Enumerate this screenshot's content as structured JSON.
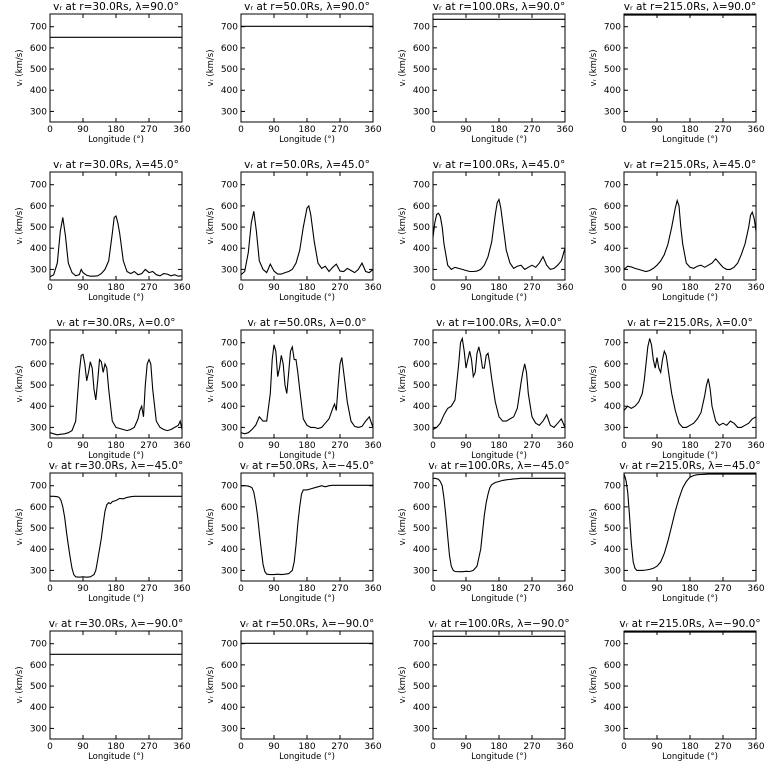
{
  "chart_data": {
    "type": "line",
    "layout": "grid",
    "x_ticks": [
      "0",
      "90",
      "180",
      "270",
      "360"
    ],
    "y_ticks": [
      "300",
      "400",
      "500",
      "600",
      "700"
    ],
    "xlim": [
      0,
      360
    ],
    "ylim": [
      250,
      760
    ],
    "xlabel": "Longitude (°)",
    "ylabel": "vᵣ (km/s)",
    "panels": [
      {
        "title": "vᵣ at r=30.0Rs,  λ=90.0°",
        "x": [
          0,
          360
        ],
        "y": [
          650,
          650
        ]
      },
      {
        "title": "vᵣ at r=50.0Rs,  λ=90.0°",
        "x": [
          0,
          360
        ],
        "y": [
          702,
          702
        ]
      },
      {
        "title": "vᵣ at r=100.0Rs,  λ=90.0°",
        "x": [
          0,
          360
        ],
        "y": [
          735,
          735
        ]
      },
      {
        "title": "vᵣ at r=215.0Rs,  λ=90.0°",
        "x": [
          0,
          360
        ],
        "y": [
          755,
          755
        ]
      },
      {
        "title": "vᵣ at r=30.0Rs,  λ=45.0°",
        "x": [
          0,
          10,
          20,
          28,
          35,
          42,
          50,
          60,
          70,
          80,
          85,
          90,
          100,
          110,
          120,
          130,
          140,
          150,
          160,
          170,
          175,
          180,
          185,
          190,
          200,
          210,
          220,
          230,
          240,
          250,
          260,
          270,
          280,
          290,
          300,
          310,
          320,
          330,
          340,
          350,
          360
        ],
        "y": [
          265,
          275,
          330,
          480,
          545,
          460,
          330,
          285,
          270,
          275,
          300,
          285,
          272,
          268,
          268,
          270,
          280,
          300,
          340,
          470,
          545,
          552,
          520,
          470,
          340,
          290,
          280,
          290,
          275,
          280,
          300,
          285,
          290,
          275,
          270,
          280,
          278,
          270,
          275,
          268,
          270
        ]
      },
      {
        "title": "vᵣ at r=50.0Rs,  λ=45.0°",
        "x": [
          0,
          10,
          20,
          28,
          35,
          42,
          50,
          60,
          70,
          80,
          90,
          100,
          110,
          120,
          130,
          140,
          150,
          160,
          170,
          180,
          185,
          190,
          200,
          210,
          220,
          230,
          240,
          250,
          260,
          270,
          280,
          290,
          300,
          310,
          320,
          330,
          340,
          350,
          360
        ],
        "y": [
          275,
          290,
          380,
          520,
          575,
          480,
          340,
          300,
          285,
          325,
          292,
          278,
          278,
          285,
          290,
          300,
          330,
          390,
          500,
          590,
          600,
          560,
          430,
          330,
          305,
          315,
          290,
          310,
          325,
          292,
          290,
          305,
          295,
          285,
          300,
          330,
          290,
          285,
          300
        ]
      },
      {
        "title": "vᵣ at r=100.0Rs,  λ=45.0°",
        "x": [
          0,
          5,
          10,
          15,
          20,
          25,
          30,
          40,
          50,
          60,
          70,
          80,
          90,
          100,
          110,
          120,
          130,
          140,
          150,
          160,
          170,
          175,
          180,
          185,
          190,
          200,
          210,
          220,
          230,
          240,
          250,
          260,
          270,
          280,
          290,
          300,
          310,
          320,
          330,
          340,
          350,
          360
        ],
        "y": [
          450,
          520,
          560,
          565,
          550,
          500,
          420,
          320,
          300,
          310,
          305,
          300,
          295,
          290,
          290,
          292,
          300,
          320,
          360,
          430,
          560,
          615,
          630,
          590,
          520,
          390,
          330,
          305,
          315,
          320,
          300,
          310,
          320,
          310,
          330,
          360,
          320,
          300,
          305,
          320,
          340,
          400
        ]
      },
      {
        "title": "vᵣ at r=215.0Rs,  λ=45.0°",
        "x": [
          0,
          10,
          20,
          30,
          40,
          50,
          60,
          70,
          80,
          90,
          100,
          110,
          120,
          130,
          140,
          145,
          150,
          155,
          160,
          170,
          180,
          190,
          200,
          210,
          220,
          230,
          240,
          250,
          260,
          270,
          280,
          290,
          300,
          310,
          320,
          330,
          340,
          345,
          350,
          355,
          360
        ],
        "y": [
          300,
          315,
          312,
          305,
          300,
          295,
          290,
          295,
          305,
          320,
          340,
          370,
          420,
          500,
          590,
          625,
          600,
          500,
          420,
          330,
          310,
          305,
          315,
          320,
          310,
          320,
          330,
          350,
          330,
          310,
          300,
          300,
          310,
          330,
          370,
          420,
          500,
          555,
          570,
          540,
          480
        ]
      },
      {
        "title": "vᵣ at r=30.0Rs,  λ=0.0°",
        "x": [
          0,
          10,
          20,
          30,
          40,
          50,
          60,
          70,
          80,
          85,
          90,
          95,
          100,
          105,
          110,
          115,
          120,
          125,
          130,
          135,
          140,
          145,
          150,
          155,
          160,
          170,
          180,
          190,
          200,
          210,
          220,
          230,
          240,
          245,
          250,
          255,
          260,
          265,
          270,
          275,
          280,
          290,
          300,
          310,
          320,
          330,
          340,
          350,
          355,
          360
        ],
        "y": [
          275,
          270,
          265,
          268,
          270,
          275,
          285,
          330,
          560,
          640,
          645,
          600,
          520,
          560,
          610,
          580,
          480,
          430,
          520,
          620,
          610,
          560,
          600,
          580,
          480,
          330,
          300,
          295,
          290,
          285,
          290,
          300,
          340,
          380,
          400,
          350,
          500,
          600,
          620,
          600,
          480,
          330,
          300,
          290,
          285,
          290,
          300,
          310,
          330,
          290
        ]
      },
      {
        "title": "vᵣ at r=50.0Rs,  λ=0.0°",
        "x": [
          0,
          10,
          20,
          30,
          40,
          50,
          60,
          70,
          80,
          85,
          90,
          95,
          100,
          105,
          110,
          115,
          120,
          125,
          130,
          135,
          140,
          145,
          150,
          155,
          160,
          170,
          180,
          190,
          200,
          210,
          220,
          230,
          240,
          250,
          255,
          260,
          265,
          270,
          275,
          280,
          290,
          300,
          310,
          320,
          330,
          340,
          350,
          360
        ],
        "y": [
          275,
          270,
          275,
          290,
          310,
          350,
          330,
          330,
          460,
          620,
          690,
          660,
          540,
          580,
          640,
          600,
          500,
          460,
          560,
          660,
          680,
          620,
          620,
          560,
          480,
          340,
          310,
          300,
          300,
          295,
          300,
          320,
          340,
          390,
          410,
          380,
          500,
          600,
          630,
          560,
          420,
          330,
          305,
          300,
          305,
          330,
          350,
          300
        ]
      },
      {
        "title": "vᵣ at r=100.0Rs,  λ=0.0°",
        "x": [
          0,
          10,
          20,
          30,
          40,
          50,
          60,
          70,
          75,
          80,
          85,
          90,
          95,
          100,
          105,
          110,
          115,
          120,
          125,
          130,
          135,
          140,
          145,
          150,
          155,
          160,
          170,
          180,
          190,
          200,
          210,
          220,
          230,
          235,
          240,
          245,
          250,
          255,
          260,
          270,
          280,
          290,
          300,
          310,
          320,
          330,
          340,
          350,
          360
        ],
        "y": [
          290,
          300,
          320,
          360,
          390,
          400,
          430,
          600,
          700,
          720,
          660,
          580,
          620,
          660,
          620,
          540,
          560,
          650,
          680,
          640,
          580,
          580,
          640,
          650,
          600,
          530,
          420,
          350,
          330,
          330,
          340,
          350,
          390,
          450,
          510,
          560,
          600,
          560,
          460,
          350,
          320,
          310,
          330,
          360,
          310,
          300,
          320,
          340,
          300
        ]
      },
      {
        "title": "vᵣ at r=215.0Rs,  λ=0.0°",
        "x": [
          0,
          10,
          20,
          30,
          40,
          50,
          55,
          60,
          65,
          70,
          75,
          80,
          85,
          90,
          95,
          100,
          105,
          110,
          115,
          120,
          125,
          130,
          140,
          150,
          160,
          170,
          180,
          190,
          200,
          210,
          220,
          225,
          230,
          235,
          240,
          250,
          260,
          270,
          280,
          290,
          300,
          310,
          320,
          330,
          340,
          350,
          360
        ],
        "y": [
          380,
          400,
          390,
          400,
          420,
          460,
          520,
          600,
          680,
          720,
          690,
          620,
          580,
          630,
          580,
          560,
          620,
          660,
          640,
          580,
          520,
          460,
          380,
          320,
          300,
          300,
          310,
          320,
          340,
          370,
          450,
          500,
          530,
          480,
          400,
          330,
          310,
          320,
          310,
          330,
          320,
          300,
          300,
          310,
          320,
          340,
          350
        ]
      },
      {
        "title": "vᵣ at r=30.0Rs,  λ=−45.0°",
        "x": [
          0,
          10,
          20,
          25,
          30,
          35,
          40,
          45,
          50,
          55,
          60,
          65,
          70,
          80,
          90,
          100,
          110,
          115,
          120,
          125,
          130,
          140,
          145,
          150,
          155,
          160,
          165,
          170,
          180,
          190,
          200,
          210,
          220,
          230,
          240,
          250,
          260,
          270,
          280,
          290,
          300,
          310,
          320,
          330,
          340,
          350,
          360
        ],
        "y": [
          650,
          650,
          648,
          645,
          630,
          600,
          550,
          480,
          420,
          360,
          310,
          280,
          270,
          268,
          270,
          268,
          270,
          275,
          280,
          300,
          350,
          450,
          520,
          580,
          610,
          620,
          615,
          625,
          630,
          640,
          638,
          645,
          648,
          650,
          650,
          650,
          650,
          650,
          650,
          650,
          650,
          650,
          650,
          650,
          650,
          650,
          650
        ]
      },
      {
        "title": "vᵣ at r=50.0Rs,  λ=−45.0°",
        "x": [
          0,
          10,
          20,
          25,
          30,
          35,
          40,
          45,
          50,
          55,
          60,
          65,
          70,
          80,
          90,
          100,
          110,
          120,
          130,
          140,
          145,
          150,
          155,
          160,
          165,
          170,
          180,
          190,
          200,
          210,
          220,
          230,
          240,
          250,
          260,
          270,
          280,
          290,
          300,
          310,
          320,
          330,
          340,
          350,
          360
        ],
        "y": [
          700,
          700,
          698,
          695,
          690,
          670,
          620,
          560,
          480,
          400,
          330,
          295,
          282,
          280,
          280,
          282,
          280,
          282,
          285,
          300,
          340,
          420,
          520,
          600,
          660,
          680,
          680,
          685,
          690,
          695,
          700,
          695,
          700,
          702,
          702,
          702,
          702,
          702,
          702,
          702,
          702,
          702,
          702,
          702,
          702
        ]
      },
      {
        "title": "vᵣ at r=100.0Rs,  λ=−45.0°",
        "x": [
          0,
          5,
          10,
          15,
          20,
          25,
          30,
          35,
          40,
          45,
          50,
          55,
          60,
          70,
          80,
          90,
          100,
          110,
          120,
          130,
          135,
          140,
          145,
          150,
          155,
          160,
          170,
          180,
          190,
          200,
          210,
          220,
          230,
          240,
          250,
          260,
          270,
          280,
          290,
          300,
          310,
          320,
          330,
          340,
          350,
          360
        ],
        "y": [
          735,
          735,
          733,
          730,
          720,
          700,
          640,
          560,
          460,
          370,
          320,
          300,
          295,
          294,
          294,
          296,
          295,
          300,
          320,
          400,
          480,
          560,
          620,
          660,
          690,
          705,
          715,
          720,
          725,
          728,
          730,
          732,
          733,
          735,
          735,
          735,
          735,
          735,
          735,
          735,
          735,
          735,
          735,
          735,
          735,
          735
        ]
      },
      {
        "title": "vᵣ at r=215.0Rs,  λ=−45.0°",
        "x": [
          0,
          3,
          6,
          10,
          15,
          20,
          25,
          30,
          35,
          40,
          50,
          60,
          70,
          80,
          90,
          100,
          110,
          120,
          130,
          140,
          150,
          160,
          170,
          180,
          190,
          200,
          210,
          220,
          230,
          240,
          250,
          260,
          270,
          280,
          290,
          300,
          310,
          320,
          330,
          340,
          350,
          360
        ],
        "y": [
          755,
          740,
          720,
          670,
          560,
          430,
          340,
          310,
          300,
          300,
          300,
          302,
          305,
          310,
          320,
          340,
          380,
          440,
          510,
          580,
          640,
          690,
          720,
          740,
          748,
          752,
          753,
          754,
          755,
          755,
          755,
          755,
          755,
          755,
          755,
          755,
          755,
          755,
          755,
          755,
          755,
          755
        ]
      },
      {
        "title": "vᵣ at r=30.0Rs,  λ=−90.0°",
        "x": [
          0,
          360
        ],
        "y": [
          650,
          650
        ]
      },
      {
        "title": "vᵣ at r=50.0Rs,  λ=−90.0°",
        "x": [
          0,
          360
        ],
        "y": [
          702,
          702
        ]
      },
      {
        "title": "vᵣ at r=100.0Rs,  λ=−90.0°",
        "x": [
          0,
          360
        ],
        "y": [
          735,
          735
        ]
      },
      {
        "title": "vᵣ at r=215.0Rs,  λ=−90.0°",
        "x": [
          0,
          360
        ],
        "y": [
          755,
          755
        ]
      }
    ]
  }
}
